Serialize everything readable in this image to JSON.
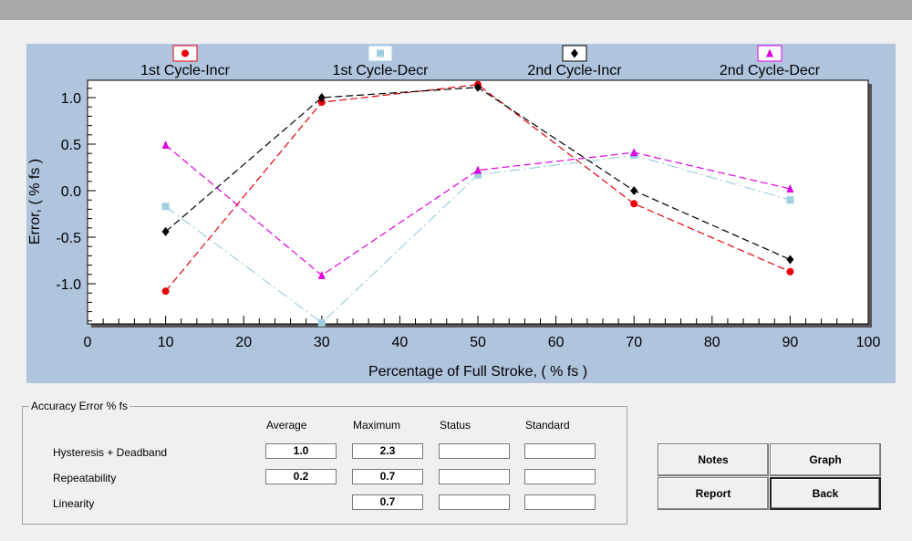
{
  "chart_data": {
    "type": "line",
    "title": "",
    "xlabel": "Percentage of Full Stroke, ( % fs )",
    "ylabel": "Error, ( % fs )",
    "xlim": [
      0,
      100
    ],
    "ylim": [
      -1.42,
      1.12
    ],
    "x_ticks": [
      "0",
      "10",
      "20",
      "30",
      "40",
      "50",
      "60",
      "70",
      "80",
      "90",
      "100"
    ],
    "y_ticks": [
      "1.0",
      "0.5",
      "0.0",
      "-0.5",
      "-1.0"
    ],
    "legend_position": "top",
    "series": [
      {
        "name": "1st Cycle-Incr",
        "color": "#e8000b",
        "marker": "circle",
        "x": [
          10,
          30,
          50,
          70,
          90
        ],
        "y": [
          -1.08,
          0.95,
          1.14,
          -0.14,
          -0.87
        ]
      },
      {
        "name": "1st Cycle-Decr",
        "color": "#9fcfdf",
        "marker": "square",
        "x": [
          10,
          30,
          50,
          70,
          90
        ],
        "y": [
          -0.17,
          -1.42,
          0.17,
          0.38,
          -0.1
        ]
      },
      {
        "name": "2nd Cycle-Incr",
        "color": "#000000",
        "marker": "diamond",
        "x": [
          10,
          30,
          50,
          70,
          90
        ],
        "y": [
          -0.44,
          1.0,
          1.11,
          0.0,
          -0.74
        ]
      },
      {
        "name": "2nd Cycle-Decr",
        "color": "#e000e0",
        "marker": "triangle",
        "x": [
          10,
          30,
          50,
          70,
          90
        ],
        "y": [
          0.49,
          -0.91,
          0.22,
          0.41,
          0.02
        ]
      }
    ]
  },
  "accuracy": {
    "title": "Accuracy Error % fs",
    "columns": [
      "Average",
      "Maximum",
      "Status",
      "Standard"
    ],
    "rows": [
      {
        "label": "Hysteresis + Deadband",
        "average": "1.0",
        "maximum": "2.3",
        "status": "",
        "standard": ""
      },
      {
        "label": "Repeatability",
        "average": "0.2",
        "maximum": "0.7",
        "status": "",
        "standard": ""
      },
      {
        "label": "Linearity",
        "maximum": "0.7",
        "status": "",
        "standard": ""
      }
    ]
  },
  "buttons": {
    "notes": "Notes",
    "graph": "Graph",
    "report": "Report",
    "back": "Back"
  }
}
